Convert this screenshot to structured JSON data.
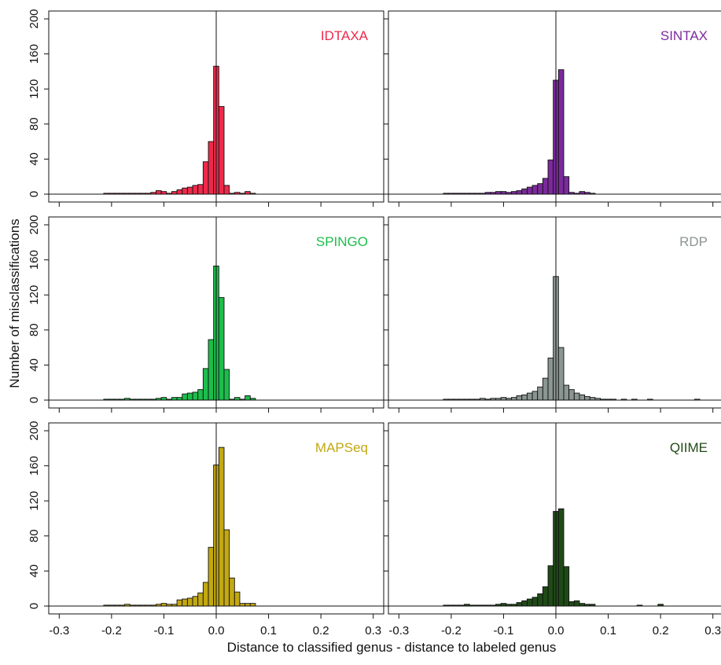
{
  "figure": {
    "ylabel": "Number of misclassifications",
    "xlabel": "Distance to classified genus - distance to labeled genus"
  },
  "axes": {
    "x_ticks": [
      -0.3,
      -0.2,
      -0.1,
      0.0,
      0.1,
      0.2,
      0.3
    ],
    "x_tick_labels": [
      "-0.3",
      "-0.2",
      "-0.1",
      "0.0",
      "0.1",
      "0.2",
      "0.3"
    ],
    "y_ticks": [
      0,
      40,
      80,
      120,
      160,
      200
    ],
    "y_tick_labels": [
      "0",
      "40",
      "80",
      "120",
      "160",
      "200"
    ]
  },
  "chart_data": [
    {
      "type": "bar",
      "panel_label": "IDTAXA",
      "color": "#ee2a4b",
      "bin_width": 0.01,
      "xlim": [
        -0.32,
        0.32
      ],
      "ylim": [
        0,
        200
      ],
      "bins": [
        {
          "x": -0.21,
          "y": 1
        },
        {
          "x": -0.2,
          "y": 1
        },
        {
          "x": -0.19,
          "y": 1
        },
        {
          "x": -0.18,
          "y": 1
        },
        {
          "x": -0.17,
          "y": 1
        },
        {
          "x": -0.16,
          "y": 1
        },
        {
          "x": -0.15,
          "y": 1
        },
        {
          "x": -0.14,
          "y": 1
        },
        {
          "x": -0.13,
          "y": 1
        },
        {
          "x": -0.12,
          "y": 2
        },
        {
          "x": -0.11,
          "y": 4
        },
        {
          "x": -0.1,
          "y": 3
        },
        {
          "x": -0.09,
          "y": 1
        },
        {
          "x": -0.08,
          "y": 3
        },
        {
          "x": -0.07,
          "y": 5
        },
        {
          "x": -0.06,
          "y": 7
        },
        {
          "x": -0.05,
          "y": 8
        },
        {
          "x": -0.04,
          "y": 10
        },
        {
          "x": -0.03,
          "y": 11
        },
        {
          "x": -0.02,
          "y": 37
        },
        {
          "x": -0.01,
          "y": 60
        },
        {
          "x": 0.0,
          "y": 146
        },
        {
          "x": 0.01,
          "y": 100
        },
        {
          "x": 0.02,
          "y": 10
        },
        {
          "x": 0.03,
          "y": 1
        },
        {
          "x": 0.04,
          "y": 2
        },
        {
          "x": 0.05,
          "y": 1
        },
        {
          "x": 0.06,
          "y": 3
        },
        {
          "x": 0.07,
          "y": 1
        }
      ]
    },
    {
      "type": "bar",
      "panel_label": "SINTAX",
      "color": "#7b2a9c",
      "bin_width": 0.01,
      "xlim": [
        -0.32,
        0.32
      ],
      "ylim": [
        0,
        200
      ],
      "bins": [
        {
          "x": -0.21,
          "y": 1
        },
        {
          "x": -0.2,
          "y": 1
        },
        {
          "x": -0.19,
          "y": 1
        },
        {
          "x": -0.18,
          "y": 1
        },
        {
          "x": -0.17,
          "y": 1
        },
        {
          "x": -0.16,
          "y": 1
        },
        {
          "x": -0.15,
          "y": 1
        },
        {
          "x": -0.14,
          "y": 1
        },
        {
          "x": -0.13,
          "y": 2
        },
        {
          "x": -0.12,
          "y": 2
        },
        {
          "x": -0.11,
          "y": 3
        },
        {
          "x": -0.1,
          "y": 3
        },
        {
          "x": -0.09,
          "y": 2
        },
        {
          "x": -0.08,
          "y": 3
        },
        {
          "x": -0.07,
          "y": 4
        },
        {
          "x": -0.06,
          "y": 6
        },
        {
          "x": -0.05,
          "y": 8
        },
        {
          "x": -0.04,
          "y": 10
        },
        {
          "x": -0.03,
          "y": 12
        },
        {
          "x": -0.02,
          "y": 18
        },
        {
          "x": -0.01,
          "y": 39
        },
        {
          "x": 0.0,
          "y": 130
        },
        {
          "x": 0.01,
          "y": 142
        },
        {
          "x": 0.02,
          "y": 20
        },
        {
          "x": 0.03,
          "y": 2
        },
        {
          "x": 0.04,
          "y": 1
        },
        {
          "x": 0.05,
          "y": 3
        },
        {
          "x": 0.06,
          "y": 2
        },
        {
          "x": 0.07,
          "y": 1
        }
      ]
    },
    {
      "type": "bar",
      "panel_label": "SPINGO",
      "color": "#1dbd4b",
      "bin_width": 0.01,
      "xlim": [
        -0.32,
        0.32
      ],
      "ylim": [
        0,
        200
      ],
      "bins": [
        {
          "x": -0.21,
          "y": 1
        },
        {
          "x": -0.2,
          "y": 1
        },
        {
          "x": -0.19,
          "y": 1
        },
        {
          "x": -0.18,
          "y": 1
        },
        {
          "x": -0.17,
          "y": 2
        },
        {
          "x": -0.16,
          "y": 1
        },
        {
          "x": -0.15,
          "y": 1
        },
        {
          "x": -0.14,
          "y": 1
        },
        {
          "x": -0.13,
          "y": 1
        },
        {
          "x": -0.12,
          "y": 1
        },
        {
          "x": -0.11,
          "y": 2
        },
        {
          "x": -0.1,
          "y": 3
        },
        {
          "x": -0.09,
          "y": 1
        },
        {
          "x": -0.08,
          "y": 3
        },
        {
          "x": -0.07,
          "y": 3
        },
        {
          "x": -0.06,
          "y": 7
        },
        {
          "x": -0.05,
          "y": 8
        },
        {
          "x": -0.04,
          "y": 9
        },
        {
          "x": -0.03,
          "y": 12
        },
        {
          "x": -0.02,
          "y": 36
        },
        {
          "x": -0.01,
          "y": 69
        },
        {
          "x": 0.0,
          "y": 153
        },
        {
          "x": 0.01,
          "y": 117
        },
        {
          "x": 0.02,
          "y": 35
        },
        {
          "x": 0.03,
          "y": 1
        },
        {
          "x": 0.04,
          "y": 3
        },
        {
          "x": 0.05,
          "y": 1
        },
        {
          "x": 0.06,
          "y": 5
        },
        {
          "x": 0.07,
          "y": 2
        }
      ]
    },
    {
      "type": "bar",
      "panel_label": "RDP",
      "color": "#8b9591",
      "bin_width": 0.01,
      "xlim": [
        -0.32,
        0.32
      ],
      "ylim": [
        0,
        200
      ],
      "bins": [
        {
          "x": -0.21,
          "y": 1
        },
        {
          "x": -0.2,
          "y": 1
        },
        {
          "x": -0.19,
          "y": 1
        },
        {
          "x": -0.18,
          "y": 1
        },
        {
          "x": -0.17,
          "y": 1
        },
        {
          "x": -0.16,
          "y": 1
        },
        {
          "x": -0.15,
          "y": 1
        },
        {
          "x": -0.14,
          "y": 2
        },
        {
          "x": -0.13,
          "y": 1
        },
        {
          "x": -0.12,
          "y": 2
        },
        {
          "x": -0.11,
          "y": 2
        },
        {
          "x": -0.1,
          "y": 3
        },
        {
          "x": -0.09,
          "y": 2
        },
        {
          "x": -0.08,
          "y": 3
        },
        {
          "x": -0.07,
          "y": 5
        },
        {
          "x": -0.06,
          "y": 6
        },
        {
          "x": -0.05,
          "y": 8
        },
        {
          "x": -0.04,
          "y": 10
        },
        {
          "x": -0.03,
          "y": 15
        },
        {
          "x": -0.02,
          "y": 25
        },
        {
          "x": -0.01,
          "y": 48
        },
        {
          "x": 0.0,
          "y": 141
        },
        {
          "x": 0.01,
          "y": 60
        },
        {
          "x": 0.02,
          "y": 17
        },
        {
          "x": 0.03,
          "y": 12
        },
        {
          "x": 0.04,
          "y": 8
        },
        {
          "x": 0.05,
          "y": 6
        },
        {
          "x": 0.06,
          "y": 4
        },
        {
          "x": 0.07,
          "y": 3
        },
        {
          "x": 0.08,
          "y": 2
        },
        {
          "x": 0.09,
          "y": 1
        },
        {
          "x": 0.1,
          "y": 1
        },
        {
          "x": 0.11,
          "y": 1
        },
        {
          "x": 0.13,
          "y": 1
        },
        {
          "x": 0.15,
          "y": 1
        },
        {
          "x": 0.18,
          "y": 1
        },
        {
          "x": 0.27,
          "y": 1
        }
      ]
    },
    {
      "type": "bar",
      "panel_label": "MAPSeq",
      "color": "#c2a813",
      "bin_width": 0.01,
      "xlim": [
        -0.32,
        0.32
      ],
      "ylim": [
        0,
        200
      ],
      "bins": [
        {
          "x": -0.21,
          "y": 1
        },
        {
          "x": -0.2,
          "y": 1
        },
        {
          "x": -0.19,
          "y": 1
        },
        {
          "x": -0.18,
          "y": 1
        },
        {
          "x": -0.17,
          "y": 2
        },
        {
          "x": -0.16,
          "y": 1
        },
        {
          "x": -0.15,
          "y": 1
        },
        {
          "x": -0.14,
          "y": 1
        },
        {
          "x": -0.13,
          "y": 1
        },
        {
          "x": -0.12,
          "y": 1
        },
        {
          "x": -0.11,
          "y": 2
        },
        {
          "x": -0.1,
          "y": 3
        },
        {
          "x": -0.09,
          "y": 2
        },
        {
          "x": -0.08,
          "y": 2
        },
        {
          "x": -0.07,
          "y": 7
        },
        {
          "x": -0.06,
          "y": 8
        },
        {
          "x": -0.05,
          "y": 9
        },
        {
          "x": -0.04,
          "y": 11
        },
        {
          "x": -0.03,
          "y": 15
        },
        {
          "x": -0.02,
          "y": 27
        },
        {
          "x": -0.01,
          "y": 67
        },
        {
          "x": 0.0,
          "y": 161
        },
        {
          "x": 0.01,
          "y": 181
        },
        {
          "x": 0.02,
          "y": 87
        },
        {
          "x": 0.03,
          "y": 32
        },
        {
          "x": 0.04,
          "y": 16
        },
        {
          "x": 0.05,
          "y": 3
        },
        {
          "x": 0.06,
          "y": 3
        },
        {
          "x": 0.07,
          "y": 3
        }
      ]
    },
    {
      "type": "bar",
      "panel_label": "QIIME",
      "color": "#1f4a17",
      "bin_width": 0.01,
      "xlim": [
        -0.32,
        0.32
      ],
      "ylim": [
        0,
        200
      ],
      "bins": [
        {
          "x": -0.21,
          "y": 1
        },
        {
          "x": -0.2,
          "y": 1
        },
        {
          "x": -0.19,
          "y": 1
        },
        {
          "x": -0.18,
          "y": 1
        },
        {
          "x": -0.17,
          "y": 2
        },
        {
          "x": -0.16,
          "y": 1
        },
        {
          "x": -0.15,
          "y": 1
        },
        {
          "x": -0.14,
          "y": 1
        },
        {
          "x": -0.13,
          "y": 1
        },
        {
          "x": -0.12,
          "y": 1
        },
        {
          "x": -0.11,
          "y": 2
        },
        {
          "x": -0.1,
          "y": 3
        },
        {
          "x": -0.09,
          "y": 2
        },
        {
          "x": -0.08,
          "y": 2
        },
        {
          "x": -0.07,
          "y": 4
        },
        {
          "x": -0.06,
          "y": 6
        },
        {
          "x": -0.05,
          "y": 8
        },
        {
          "x": -0.04,
          "y": 10
        },
        {
          "x": -0.03,
          "y": 14
        },
        {
          "x": -0.02,
          "y": 22
        },
        {
          "x": -0.01,
          "y": 46
        },
        {
          "x": 0.0,
          "y": 108
        },
        {
          "x": 0.01,
          "y": 111
        },
        {
          "x": 0.02,
          "y": 45
        },
        {
          "x": 0.03,
          "y": 5
        },
        {
          "x": 0.04,
          "y": 6
        },
        {
          "x": 0.05,
          "y": 3
        },
        {
          "x": 0.06,
          "y": 2
        },
        {
          "x": 0.07,
          "y": 2
        },
        {
          "x": 0.16,
          "y": 1
        },
        {
          "x": 0.2,
          "y": 2
        }
      ]
    }
  ]
}
